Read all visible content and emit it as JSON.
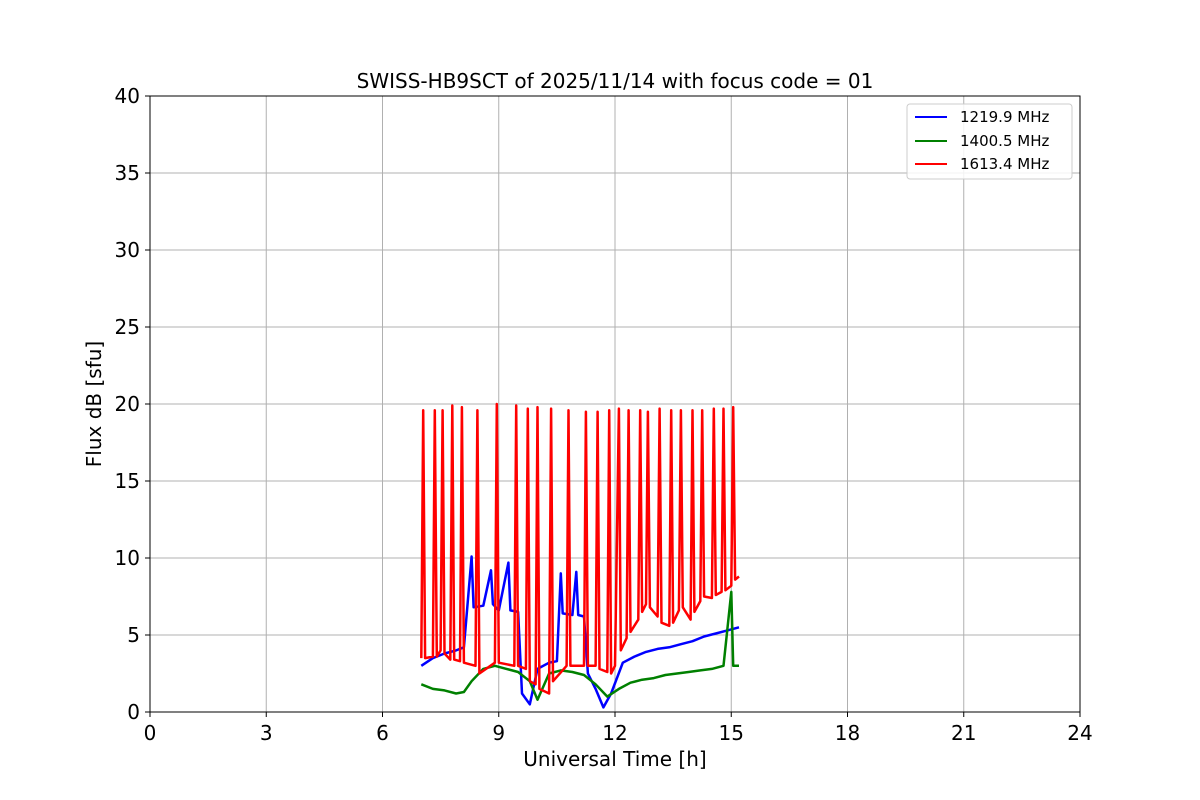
{
  "chart_data": {
    "type": "line",
    "title": "SWISS-HB9SCT of 2025/11/14 with focus code = 01",
    "xlabel": "Universal Time [h]",
    "ylabel": "Flux dB [sfu]",
    "xlim": [
      0,
      24
    ],
    "ylim": [
      0,
      40
    ],
    "xticks": [
      0,
      3,
      6,
      9,
      12,
      15,
      18,
      21,
      24
    ],
    "yticks": [
      0,
      5,
      10,
      15,
      20,
      25,
      30,
      35,
      40
    ],
    "grid": true,
    "legend_position": "top-right",
    "series": [
      {
        "name": "1219.9 MHz",
        "color": "#0000ff",
        "points": [
          [
            7.0,
            3.0
          ],
          [
            7.3,
            3.5
          ],
          [
            7.6,
            3.8
          ],
          [
            7.9,
            4.0
          ],
          [
            8.1,
            4.2
          ],
          [
            8.3,
            10.1
          ],
          [
            8.35,
            6.8
          ],
          [
            8.6,
            6.9
          ],
          [
            8.8,
            9.2
          ],
          [
            8.85,
            7.0
          ],
          [
            9.0,
            6.6
          ],
          [
            9.25,
            9.7
          ],
          [
            9.3,
            6.6
          ],
          [
            9.5,
            6.5
          ],
          [
            9.6,
            1.2
          ],
          [
            9.8,
            0.5
          ],
          [
            10.0,
            2.8
          ],
          [
            10.3,
            3.2
          ],
          [
            10.5,
            3.3
          ],
          [
            10.6,
            9.0
          ],
          [
            10.65,
            6.4
          ],
          [
            10.9,
            6.3
          ],
          [
            11.0,
            9.1
          ],
          [
            11.05,
            6.3
          ],
          [
            11.2,
            6.2
          ],
          [
            11.3,
            2.5
          ],
          [
            11.5,
            1.5
          ],
          [
            11.7,
            0.3
          ],
          [
            11.9,
            1.2
          ],
          [
            12.2,
            3.2
          ],
          [
            12.5,
            3.6
          ],
          [
            12.8,
            3.9
          ],
          [
            13.1,
            4.1
          ],
          [
            13.4,
            4.2
          ],
          [
            13.7,
            4.4
          ],
          [
            14.0,
            4.6
          ],
          [
            14.3,
            4.9
          ],
          [
            14.6,
            5.1
          ],
          [
            14.9,
            5.3
          ],
          [
            15.2,
            5.5
          ]
        ]
      },
      {
        "name": "1400.5 MHz",
        "color": "#008000",
        "points": [
          [
            7.0,
            1.8
          ],
          [
            7.3,
            1.5
          ],
          [
            7.6,
            1.4
          ],
          [
            7.9,
            1.2
          ],
          [
            8.1,
            1.3
          ],
          [
            8.3,
            2.0
          ],
          [
            8.6,
            2.8
          ],
          [
            8.9,
            3.0
          ],
          [
            9.2,
            2.8
          ],
          [
            9.5,
            2.6
          ],
          [
            9.8,
            2.0
          ],
          [
            10.0,
            0.8
          ],
          [
            10.3,
            2.5
          ],
          [
            10.6,
            2.7
          ],
          [
            10.9,
            2.6
          ],
          [
            11.2,
            2.4
          ],
          [
            11.5,
            1.8
          ],
          [
            11.8,
            1.0
          ],
          [
            12.1,
            1.5
          ],
          [
            12.4,
            1.9
          ],
          [
            12.7,
            2.1
          ],
          [
            13.0,
            2.2
          ],
          [
            13.3,
            2.4
          ],
          [
            13.6,
            2.5
          ],
          [
            13.9,
            2.6
          ],
          [
            14.2,
            2.7
          ],
          [
            14.5,
            2.8
          ],
          [
            14.8,
            3.0
          ],
          [
            15.0,
            7.8
          ],
          [
            15.05,
            3.0
          ],
          [
            15.2,
            3.0
          ]
        ]
      },
      {
        "name": "1613.4 MHz",
        "color": "#ff0000",
        "points": [
          [
            7.0,
            3.5
          ],
          [
            7.05,
            19.6
          ],
          [
            7.1,
            3.5
          ],
          [
            7.3,
            3.6
          ],
          [
            7.35,
            19.6
          ],
          [
            7.4,
            3.6
          ],
          [
            7.5,
            4.0
          ],
          [
            7.55,
            19.6
          ],
          [
            7.6,
            3.8
          ],
          [
            7.75,
            3.4
          ],
          [
            7.8,
            19.9
          ],
          [
            7.85,
            3.4
          ],
          [
            8.0,
            3.3
          ],
          [
            8.05,
            19.8
          ],
          [
            8.1,
            3.2
          ],
          [
            8.4,
            3.0
          ],
          [
            8.45,
            19.6
          ],
          [
            8.5,
            2.5
          ],
          [
            8.9,
            3.2
          ],
          [
            8.95,
            20.0
          ],
          [
            9.0,
            3.2
          ],
          [
            9.4,
            3.0
          ],
          [
            9.45,
            19.9
          ],
          [
            9.5,
            3.0
          ],
          [
            9.7,
            2.8
          ],
          [
            9.75,
            19.7
          ],
          [
            9.8,
            2.0
          ],
          [
            9.95,
            1.8
          ],
          [
            10.0,
            19.8
          ],
          [
            10.05,
            1.5
          ],
          [
            10.3,
            1.2
          ],
          [
            10.35,
            19.7
          ],
          [
            10.4,
            2.0
          ],
          [
            10.75,
            3.0
          ],
          [
            10.8,
            19.6
          ],
          [
            10.85,
            3.0
          ],
          [
            11.2,
            3.0
          ],
          [
            11.25,
            19.5
          ],
          [
            11.3,
            3.0
          ],
          [
            11.5,
            3.0
          ],
          [
            11.55,
            19.5
          ],
          [
            11.6,
            2.8
          ],
          [
            11.8,
            2.6
          ],
          [
            11.85,
            19.6
          ],
          [
            11.9,
            2.5
          ],
          [
            12.0,
            3.0
          ],
          [
            12.1,
            19.7
          ],
          [
            12.15,
            4.0
          ],
          [
            12.3,
            4.8
          ],
          [
            12.35,
            19.6
          ],
          [
            12.4,
            5.2
          ],
          [
            12.6,
            6.0
          ],
          [
            12.65,
            19.6
          ],
          [
            12.7,
            6.5
          ],
          [
            12.8,
            7.0
          ],
          [
            12.85,
            19.5
          ],
          [
            12.9,
            6.8
          ],
          [
            13.1,
            6.2
          ],
          [
            13.15,
            19.7
          ],
          [
            13.2,
            5.8
          ],
          [
            13.4,
            5.6
          ],
          [
            13.45,
            19.6
          ],
          [
            13.5,
            5.8
          ],
          [
            13.65,
            6.6
          ],
          [
            13.7,
            19.6
          ],
          [
            13.75,
            6.8
          ],
          [
            13.95,
            6.0
          ],
          [
            14.0,
            19.6
          ],
          [
            14.05,
            6.5
          ],
          [
            14.2,
            7.2
          ],
          [
            14.25,
            19.6
          ],
          [
            14.3,
            7.5
          ],
          [
            14.5,
            7.4
          ],
          [
            14.55,
            19.7
          ],
          [
            14.6,
            7.6
          ],
          [
            14.75,
            7.8
          ],
          [
            14.8,
            19.7
          ],
          [
            14.85,
            7.9
          ],
          [
            15.0,
            8.2
          ],
          [
            15.05,
            19.8
          ],
          [
            15.1,
            8.6
          ],
          [
            15.2,
            8.8
          ]
        ]
      }
    ]
  }
}
